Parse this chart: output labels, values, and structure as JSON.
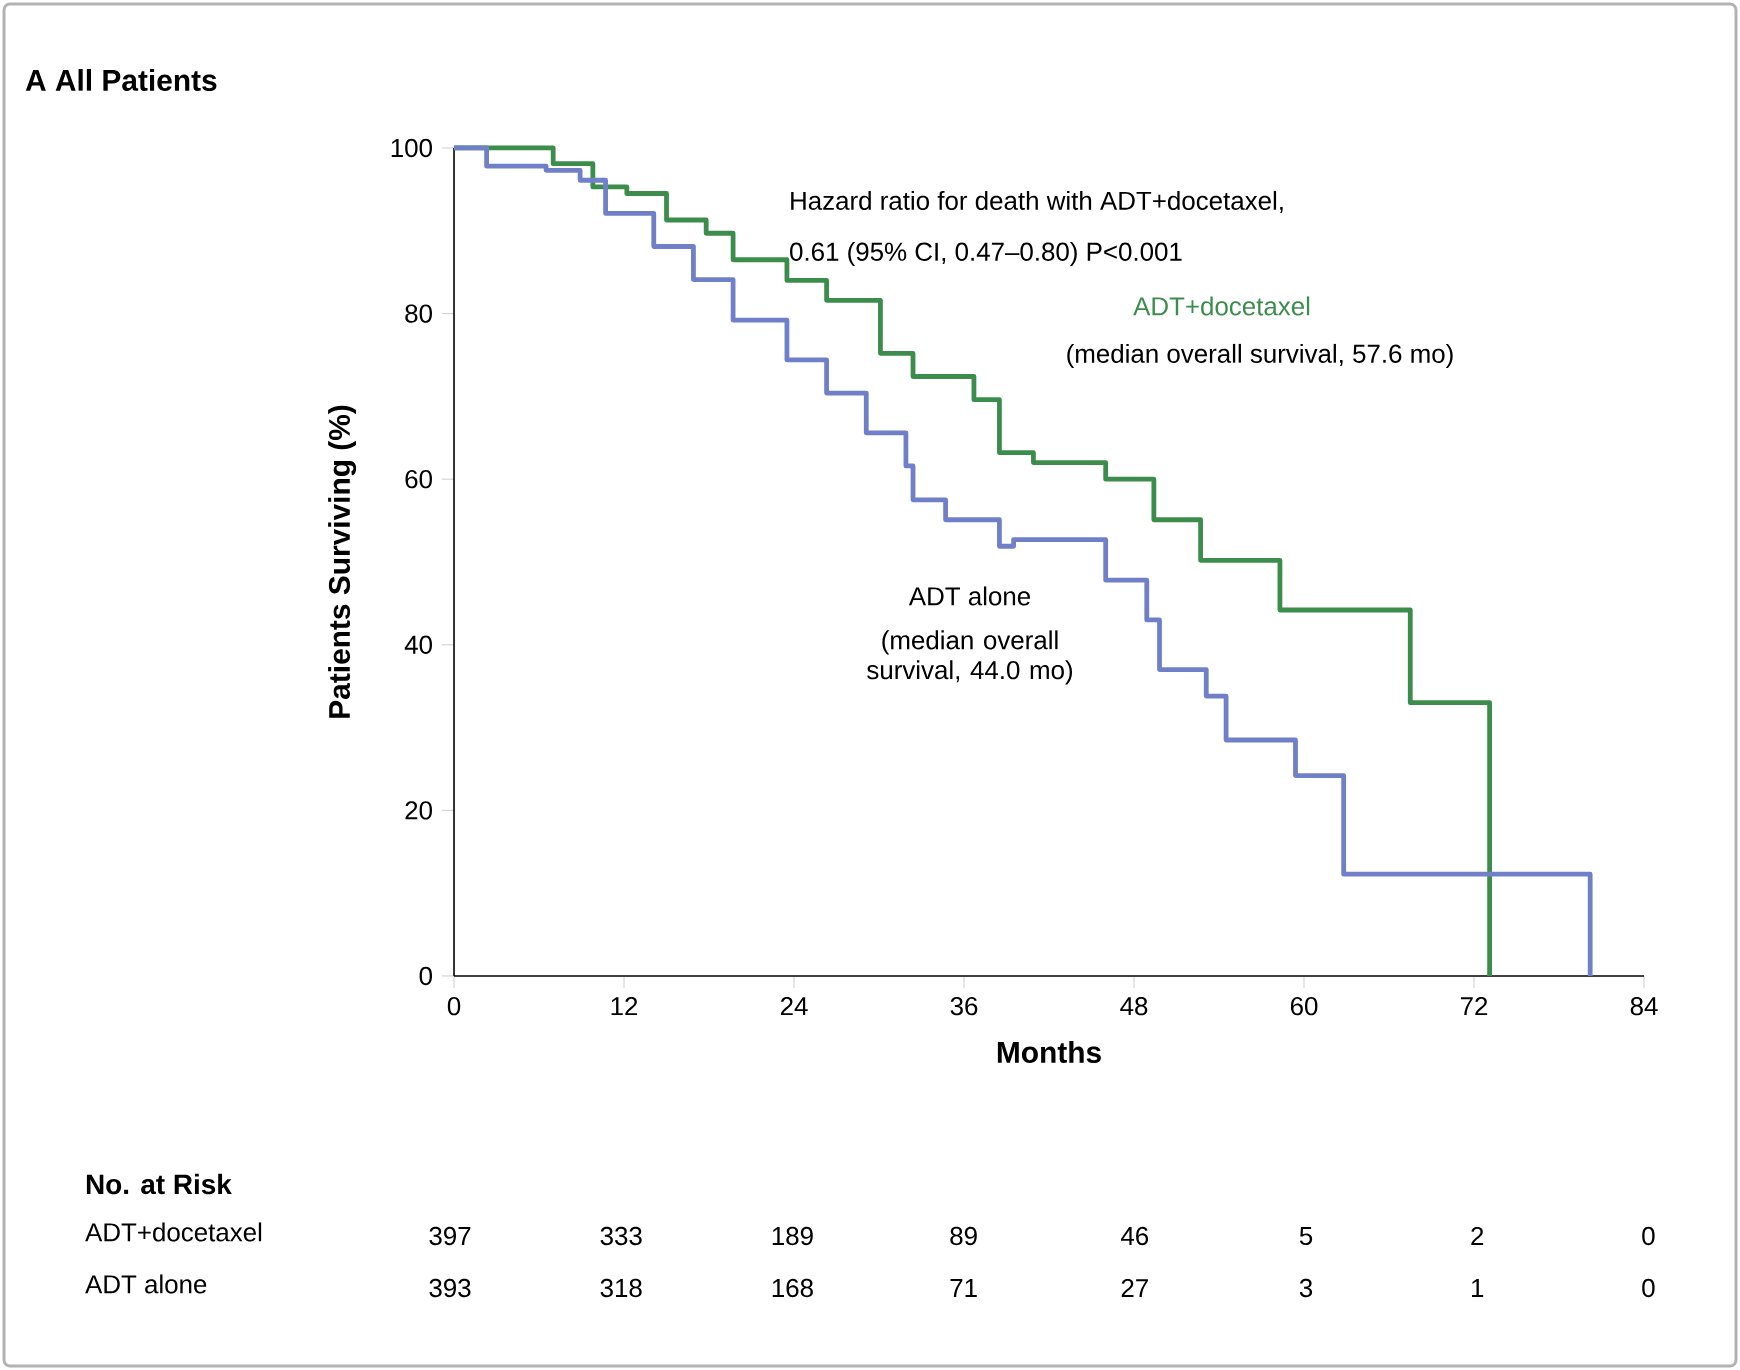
{
  "chart_data": {
    "type": "step",
    "title": "A All Patients",
    "xlabel": "Months",
    "ylabel": "Patients Surviving (%)",
    "xlim": [
      0,
      84
    ],
    "xticks": [
      0,
      12,
      24,
      36,
      48,
      60,
      72,
      84
    ],
    "ylim": [
      0,
      100
    ],
    "yticks": [
      0,
      20,
      40,
      60,
      80,
      100
    ],
    "legend": false,
    "grid": false,
    "series": [
      {
        "name": "ADT+docetaxel",
        "color": "#3c8c4c",
        "x": [
          0,
          7,
          9.8,
          12.2,
          15,
          17.8,
          19.7,
          23.5,
          26.3,
          30.1,
          32.4,
          36.7,
          38.5,
          40.9,
          46,
          49.4,
          52.7,
          58.3,
          67.5,
          73.1
        ],
        "values": [
          100,
          98.1,
          95.3,
          94.5,
          91.3,
          89.7,
          86.5,
          84,
          81.6,
          75.2,
          72.4,
          69.6,
          63.2,
          62,
          60,
          55.1,
          50.2,
          44.2,
          33,
          0
        ]
      },
      {
        "name": "ADT alone",
        "color": "#7080c8",
        "x": [
          0,
          2.3,
          6.5,
          8.9,
          10.7,
          14.1,
          16.9,
          19.7,
          23.5,
          26.3,
          29.1,
          31.9,
          32.4,
          34.7,
          38.5,
          39.5,
          46,
          48.9,
          49.8,
          53.1,
          54.5,
          59.4,
          62.8,
          80.2
        ],
        "values": [
          100,
          97.8,
          97.3,
          96.1,
          92.1,
          88.1,
          84.1,
          79.2,
          74.4,
          70.4,
          65.6,
          61.6,
          57.5,
          55.1,
          51.9,
          52.7,
          47.8,
          43,
          37,
          33.8,
          28.5,
          24.2,
          12.3,
          0
        ]
      }
    ],
    "annotations": [
      "Hazard ratio for death with ADT+docetaxel,",
      "0.61 (95% CI, 0.47–0.80) P<0.001",
      "(median overall survival, 57.6 mo)",
      "(median overall survival, 44.0 mo)",
      "No. at Risk",
      "397",
      "333",
      "189",
      "89",
      "46",
      "5",
      "2",
      "0",
      "393",
      "318",
      "168",
      "71",
      "27",
      "3",
      "1",
      "0"
    ]
  }
}
